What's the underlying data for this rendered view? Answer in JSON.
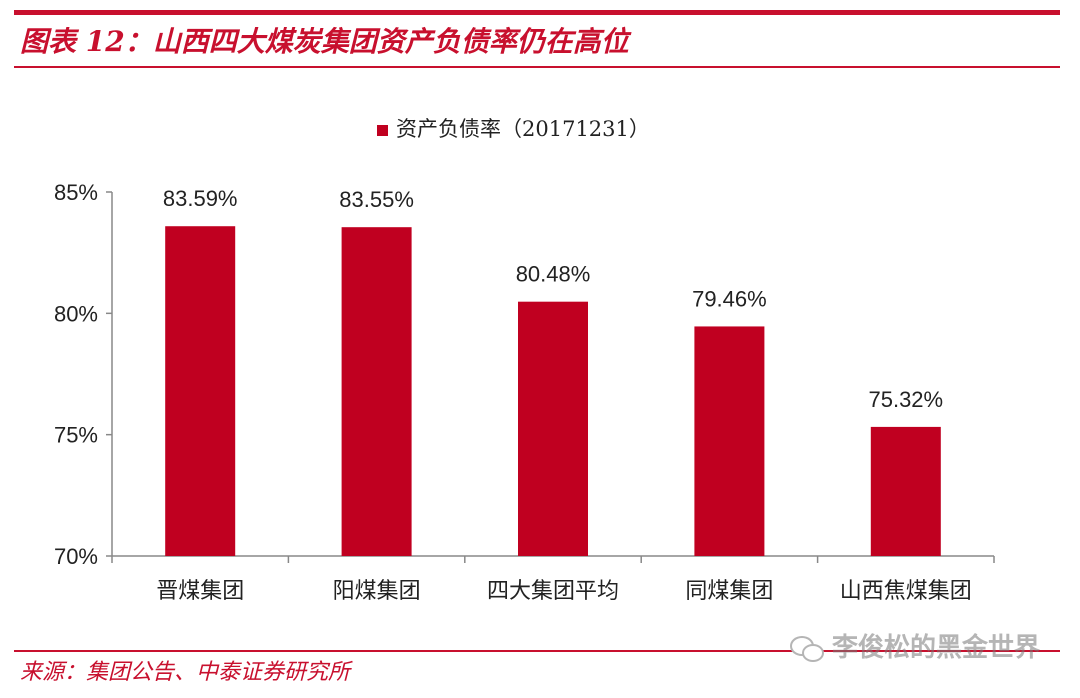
{
  "header": {
    "title": "图表 12：山西四大煤炭集团资产负债率仍在高位"
  },
  "footer": {
    "source": "来源：集团公告、中泰证券研究所",
    "watermark": "李俊松的黑金世界",
    "watermark_icon": "wechat-icon"
  },
  "colors": {
    "accent": "#c8102e",
    "bar": "#c00020"
  },
  "chart_data": {
    "type": "bar",
    "categories": [
      "晋煤集团",
      "阳煤集团",
      "四大集团平均",
      "同煤集团",
      "山西焦煤集团"
    ],
    "series": [
      {
        "name": "资产负债率（20171231）",
        "values": [
          83.59,
          83.55,
          80.48,
          79.46,
          75.32
        ],
        "labels": [
          "83.59%",
          "83.55%",
          "80.48%",
          "79.46%",
          "75.32%"
        ]
      }
    ],
    "ylim": [
      70,
      85
    ],
    "yticks": [
      70,
      75,
      80,
      85
    ],
    "ytick_labels": [
      "70%",
      "75%",
      "80%",
      "85%"
    ],
    "legend": "top-center",
    "grid": false
  }
}
